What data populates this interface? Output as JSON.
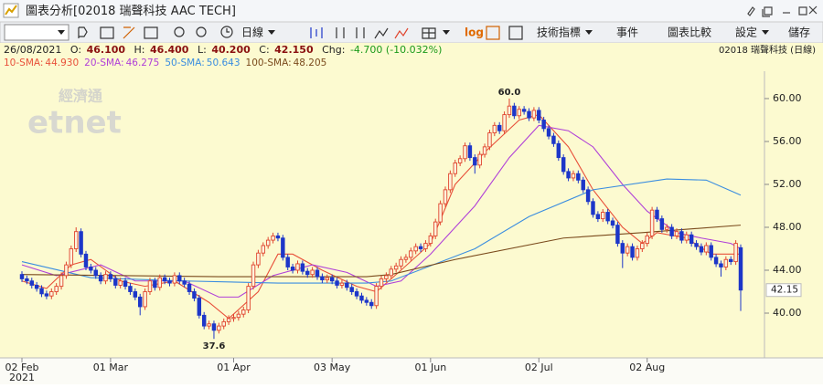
{
  "window_title": "圖表分析[02018 瑞聲科技 AAC TECH]",
  "toolbar": {
    "period": "日線",
    "log": "log",
    "indicators": "技術指標",
    "events": "事件",
    "compare": "圖表比較",
    "settings": "設定",
    "save": "儲存"
  },
  "info": {
    "date": "26/08/2021",
    "open_label": "O:",
    "open": "46.100",
    "high_label": "H:",
    "high": "46.400",
    "low_label": "L:",
    "low": "40.200",
    "close_label": "C:",
    "close": "42.150",
    "change_label": "Chg:",
    "change": "-4.700 (-10.032%)",
    "symbol": "02018  瑞聲科技 (日線)"
  },
  "chart_data": {
    "type": "candlestick",
    "watermark": [
      "經濟通",
      "etnet"
    ],
    "categories": [
      "02 Feb",
      null,
      null,
      null,
      null,
      null,
      null,
      null,
      null,
      null,
      null,
      null,
      null,
      null,
      null,
      null,
      null,
      null,
      "01 Mar",
      null,
      null,
      null,
      null,
      null,
      null,
      null,
      null,
      null,
      null,
      null,
      null,
      null,
      null,
      null,
      null,
      null,
      null,
      null,
      null,
      null,
      null,
      null,
      null,
      "01 Apr",
      null,
      null,
      null,
      null,
      null,
      null,
      null,
      null,
      null,
      null,
      null,
      null,
      null,
      null,
      null,
      null,
      null,
      null,
      null,
      "03 May",
      null,
      null,
      null,
      null,
      null,
      null,
      null,
      null,
      null,
      null,
      null,
      null,
      null,
      null,
      null,
      null,
      null,
      null,
      null,
      "01 Jun",
      null,
      null,
      null,
      null,
      null,
      null,
      null,
      null,
      null,
      null,
      null,
      null,
      null,
      null,
      null,
      null,
      null,
      null,
      null,
      null,
      null,
      "02 Jul",
      null,
      null,
      null,
      null,
      null,
      null,
      null,
      null,
      null,
      null,
      null,
      null,
      null,
      null,
      null,
      null,
      null,
      null,
      null,
      null,
      null,
      "02 Aug",
      null,
      null,
      null,
      null,
      null,
      null,
      null,
      null,
      null,
      null,
      null,
      null,
      null,
      null,
      null,
      null,
      null,
      null,
      null
    ],
    "x_year": "2021",
    "open": [
      43.6,
      43.2,
      43.0,
      42.6,
      42.3,
      41.8,
      41.6,
      42.0,
      42.5,
      43.5,
      44.5,
      46.0,
      47.6,
      45.5,
      44.3,
      44.0,
      43.5,
      43.0,
      43.6,
      43.2,
      42.6,
      43.0,
      42.5,
      42.0,
      41.5,
      40.6,
      42.0,
      43.0,
      42.4,
      43.3,
      43.0,
      42.8,
      43.5,
      43.0,
      42.7,
      42.0,
      41.4,
      39.8,
      38.8,
      39.0,
      38.4,
      38.8,
      39.2,
      39.5,
      39.6,
      39.9,
      40.3,
      42.5,
      44.5,
      45.6,
      46.3,
      46.8,
      47.2,
      47.0,
      45.2,
      44.3,
      44.0,
      44.6,
      43.9,
      43.6,
      44.0,
      43.4,
      43.1,
      43.3,
      43.0,
      42.6,
      42.8,
      42.4,
      42.0,
      41.6,
      41.2,
      41.0,
      40.7,
      42.5,
      43.2,
      43.5,
      44.1,
      44.4,
      45.0,
      45.2,
      45.8,
      46.2,
      46.0,
      46.5,
      47.2,
      48.5,
      50.2,
      51.5,
      53.0,
      54.0,
      54.4,
      55.6,
      54.5,
      53.8,
      54.8,
      55.5,
      56.8,
      57.5,
      57.0,
      58.5,
      59.3,
      58.4,
      59.0,
      58.8,
      58.2,
      58.9,
      58.0,
      57.2,
      56.5,
      55.8,
      54.5,
      53.2,
      52.6,
      53.0,
      52.4,
      51.5,
      50.4,
      49.2,
      48.8,
      49.4,
      48.6,
      48.2,
      46.5,
      45.6,
      46.2,
      45.2,
      46.0,
      46.5,
      47.2,
      49.6,
      48.8,
      47.8,
      48.0,
      47.2,
      47.6,
      46.8,
      47.3,
      46.5,
      46.2,
      45.7,
      46.3,
      45.2,
      44.6,
      44.3,
      45.0,
      44.8,
      46.1
    ],
    "high": [
      43.9,
      43.5,
      43.3,
      42.9,
      42.6,
      42.1,
      42.3,
      42.8,
      43.8,
      44.8,
      46.3,
      48.0,
      47.9,
      45.8,
      44.6,
      44.3,
      43.8,
      43.9,
      43.9,
      43.5,
      43.3,
      43.3,
      42.8,
      42.3,
      41.8,
      42.3,
      43.3,
      43.3,
      43.6,
      43.6,
      43.3,
      43.8,
      43.8,
      43.3,
      43.0,
      42.3,
      41.7,
      40.1,
      39.3,
      39.3,
      39.1,
      39.5,
      39.8,
      39.9,
      40.2,
      40.6,
      42.8,
      44.8,
      45.9,
      46.6,
      47.1,
      47.5,
      47.5,
      47.3,
      45.5,
      44.6,
      44.9,
      44.9,
      44.2,
      44.3,
      44.3,
      43.7,
      43.6,
      43.6,
      43.3,
      43.1,
      43.1,
      42.7,
      42.3,
      41.9,
      41.5,
      41.3,
      42.8,
      43.5,
      43.8,
      44.4,
      44.7,
      45.3,
      45.5,
      46.1,
      46.5,
      46.5,
      46.8,
      47.5,
      48.8,
      50.5,
      51.8,
      53.3,
      54.3,
      54.7,
      55.9,
      55.9,
      54.8,
      55.1,
      55.8,
      57.1,
      57.8,
      57.8,
      58.8,
      60.0,
      59.6,
      59.3,
      59.3,
      59.1,
      59.2,
      59.2,
      58.3,
      57.5,
      56.8,
      56.1,
      54.8,
      53.5,
      53.3,
      53.3,
      52.7,
      51.8,
      50.7,
      49.5,
      49.7,
      49.7,
      48.9,
      48.5,
      46.8,
      46.5,
      46.5,
      46.3,
      46.8,
      47.5,
      49.9,
      49.9,
      49.1,
      48.3,
      48.3,
      47.9,
      47.9,
      47.6,
      47.6,
      46.8,
      46.5,
      46.6,
      46.6,
      45.5,
      44.9,
      45.3,
      45.3,
      46.8,
      46.4
    ],
    "low": [
      42.9,
      42.7,
      42.3,
      42.0,
      41.5,
      41.3,
      41.3,
      41.7,
      42.2,
      43.2,
      44.2,
      45.7,
      45.2,
      44.0,
      43.7,
      43.2,
      42.7,
      42.7,
      42.9,
      42.3,
      42.3,
      42.2,
      41.7,
      41.2,
      39.8,
      40.3,
      41.7,
      42.1,
      42.1,
      42.7,
      42.5,
      42.5,
      42.7,
      42.4,
      41.7,
      41.1,
      39.5,
      38.5,
      38.5,
      37.6,
      38.1,
      38.5,
      38.9,
      39.2,
      39.3,
      39.6,
      40.0,
      42.2,
      44.2,
      45.3,
      46.0,
      46.5,
      46.7,
      44.9,
      44.0,
      43.7,
      43.7,
      43.6,
      43.3,
      43.3,
      43.1,
      42.8,
      42.8,
      42.7,
      42.3,
      42.3,
      42.1,
      41.7,
      41.3,
      40.9,
      40.7,
      40.4,
      40.4,
      42.2,
      42.9,
      43.2,
      43.8,
      44.1,
      44.7,
      44.9,
      45.5,
      45.7,
      45.7,
      46.2,
      46.9,
      48.2,
      49.9,
      51.2,
      52.7,
      53.7,
      54.1,
      54.2,
      53.0,
      53.5,
      54.5,
      55.2,
      56.5,
      56.7,
      56.7,
      58.2,
      58.1,
      58.1,
      58.5,
      57.9,
      57.9,
      57.7,
      56.9,
      56.2,
      55.5,
      54.2,
      52.9,
      52.3,
      52.3,
      52.1,
      51.2,
      50.1,
      48.9,
      48.5,
      48.5,
      48.3,
      47.9,
      46.2,
      44.2,
      45.3,
      44.9,
      44.9,
      45.7,
      46.2,
      46.9,
      48.5,
      47.5,
      47.5,
      46.9,
      46.9,
      46.5,
      46.5,
      46.2,
      45.9,
      45.4,
      45.4,
      44.9,
      44.3,
      43.4,
      44.0,
      44.5,
      44.5,
      40.2
    ],
    "close": [
      43.2,
      43.0,
      42.6,
      42.3,
      41.8,
      41.6,
      42.0,
      42.5,
      43.5,
      44.5,
      46.0,
      47.6,
      45.5,
      44.3,
      44.0,
      43.5,
      43.0,
      43.6,
      43.2,
      42.6,
      43.0,
      42.5,
      42.0,
      41.5,
      40.6,
      42.0,
      43.0,
      42.4,
      43.3,
      43.0,
      42.8,
      43.5,
      43.0,
      42.7,
      42.0,
      41.4,
      39.8,
      38.8,
      39.0,
      38.4,
      38.8,
      39.2,
      39.5,
      39.6,
      39.9,
      40.3,
      42.5,
      44.5,
      45.6,
      46.3,
      46.8,
      47.2,
      47.0,
      45.2,
      44.3,
      44.0,
      44.6,
      43.9,
      43.6,
      44.0,
      43.4,
      43.1,
      43.3,
      43.0,
      42.6,
      42.8,
      42.4,
      42.0,
      41.6,
      41.2,
      41.0,
      40.7,
      42.5,
      43.2,
      43.5,
      44.1,
      44.4,
      45.0,
      45.2,
      45.8,
      46.2,
      46.0,
      46.5,
      47.2,
      48.5,
      50.2,
      51.5,
      53.0,
      54.0,
      54.4,
      55.6,
      54.5,
      53.8,
      54.8,
      55.5,
      56.8,
      57.5,
      57.0,
      58.5,
      59.3,
      58.4,
      59.0,
      58.8,
      58.2,
      58.9,
      58.0,
      57.2,
      56.5,
      55.8,
      54.5,
      53.2,
      52.6,
      53.0,
      52.4,
      51.5,
      50.4,
      49.2,
      48.8,
      49.4,
      48.6,
      48.2,
      46.5,
      45.6,
      46.2,
      45.2,
      46.0,
      46.5,
      47.2,
      49.6,
      48.8,
      47.8,
      48.0,
      47.2,
      47.6,
      46.8,
      47.3,
      46.5,
      46.2,
      45.7,
      46.3,
      45.2,
      44.6,
      44.3,
      45.0,
      44.8,
      46.5,
      42.15
    ],
    "up_color": "#e0452e",
    "down_color": "#1d36c9",
    "high_label": "60.0",
    "low_label": "37.6",
    "series": [
      {
        "name": "10-SMA:",
        "legend_value": "44.930",
        "color": "#e8503a",
        "x": [
          0,
          5,
          10,
          14,
          20,
          25,
          31,
          38,
          42,
          48,
          52,
          55,
          61,
          68,
          72,
          77,
          83,
          88,
          94,
          101,
          105,
          111,
          116,
          122,
          126,
          129,
          135,
          140,
          146
        ],
        "values": [
          43.0,
          42.3,
          44.5,
          45.0,
          43.0,
          42.5,
          43.0,
          41.0,
          39.5,
          42.0,
          45.5,
          45.5,
          44.0,
          42.5,
          42.0,
          44.0,
          46.5,
          52.0,
          55.0,
          58.0,
          58.5,
          55.5,
          51.5,
          48.0,
          46.5,
          47.5,
          47.0,
          45.5,
          45.5
        ]
      },
      {
        "name": "20-SMA:",
        "legend_value": "46.275",
        "color": "#b040d8",
        "x": [
          0,
          7,
          16,
          23,
          33,
          40,
          44,
          51,
          59,
          66,
          72,
          77,
          83,
          92,
          99,
          105,
          111,
          116,
          122,
          127,
          133,
          138,
          144,
          146
        ],
        "values": [
          44.5,
          43.5,
          44.5,
          43.0,
          43.0,
          41.5,
          41.5,
          43.5,
          44.5,
          43.8,
          42.5,
          43.0,
          45.5,
          50.0,
          54.5,
          57.5,
          57.0,
          55.5,
          52.0,
          49.5,
          47.5,
          47.0,
          46.5,
          46.0
        ]
      },
      {
        "name": "50-SMA:",
        "legend_value": "50.643",
        "color": "#3a8de0",
        "x": [
          0,
          14,
          33,
          52,
          70,
          75,
          92,
          103,
          116,
          131,
          139,
          146
        ],
        "values": [
          44.8,
          43.3,
          43.0,
          42.8,
          42.8,
          43.0,
          46.0,
          49.0,
          51.5,
          52.5,
          52.4,
          51.0
        ]
      },
      {
        "name": "100-SMA:",
        "legend_value": "48.205",
        "color": "#7a4a1c",
        "x": [
          0,
          40,
          70,
          75,
          88,
          110,
          126,
          146
        ],
        "values": [
          43.6,
          43.4,
          43.4,
          43.6,
          45.0,
          47.0,
          47.5,
          48.2
        ]
      }
    ],
    "ylim": [
      35.83,
      62.55
    ],
    "yticks": [
      {
        "value": 40,
        "label": "40.00"
      },
      {
        "value": 44,
        "label": "44.00"
      },
      {
        "value": 48,
        "label": "48.00"
      },
      {
        "value": 52,
        "label": "52.00"
      },
      {
        "value": 56,
        "label": "56.00"
      },
      {
        "value": 60,
        "label": "60.00"
      }
    ],
    "last_price": 42.15
  }
}
